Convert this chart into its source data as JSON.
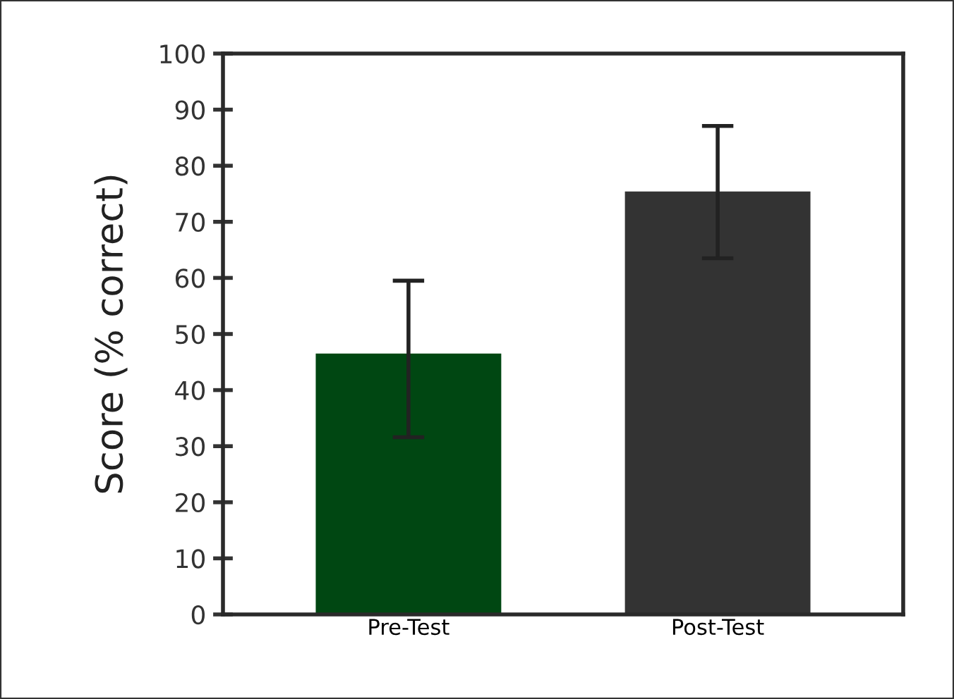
{
  "chart_data": {
    "type": "bar",
    "ylabel": "Score (% correct)",
    "categories": [
      "Pre-Test",
      "Post-Test"
    ],
    "values": [
      46.5,
      75.4
    ],
    "errors": [
      [
        31.6,
        59.5
      ],
      [
        63.5,
        87.1
      ]
    ],
    "colors": [
      "#004712",
      "#333333"
    ],
    "ylim": [
      0,
      100
    ],
    "yticks": [
      0,
      10,
      20,
      30,
      40,
      50,
      60,
      70,
      80,
      90,
      100
    ],
    "grid": false,
    "legend": false
  }
}
